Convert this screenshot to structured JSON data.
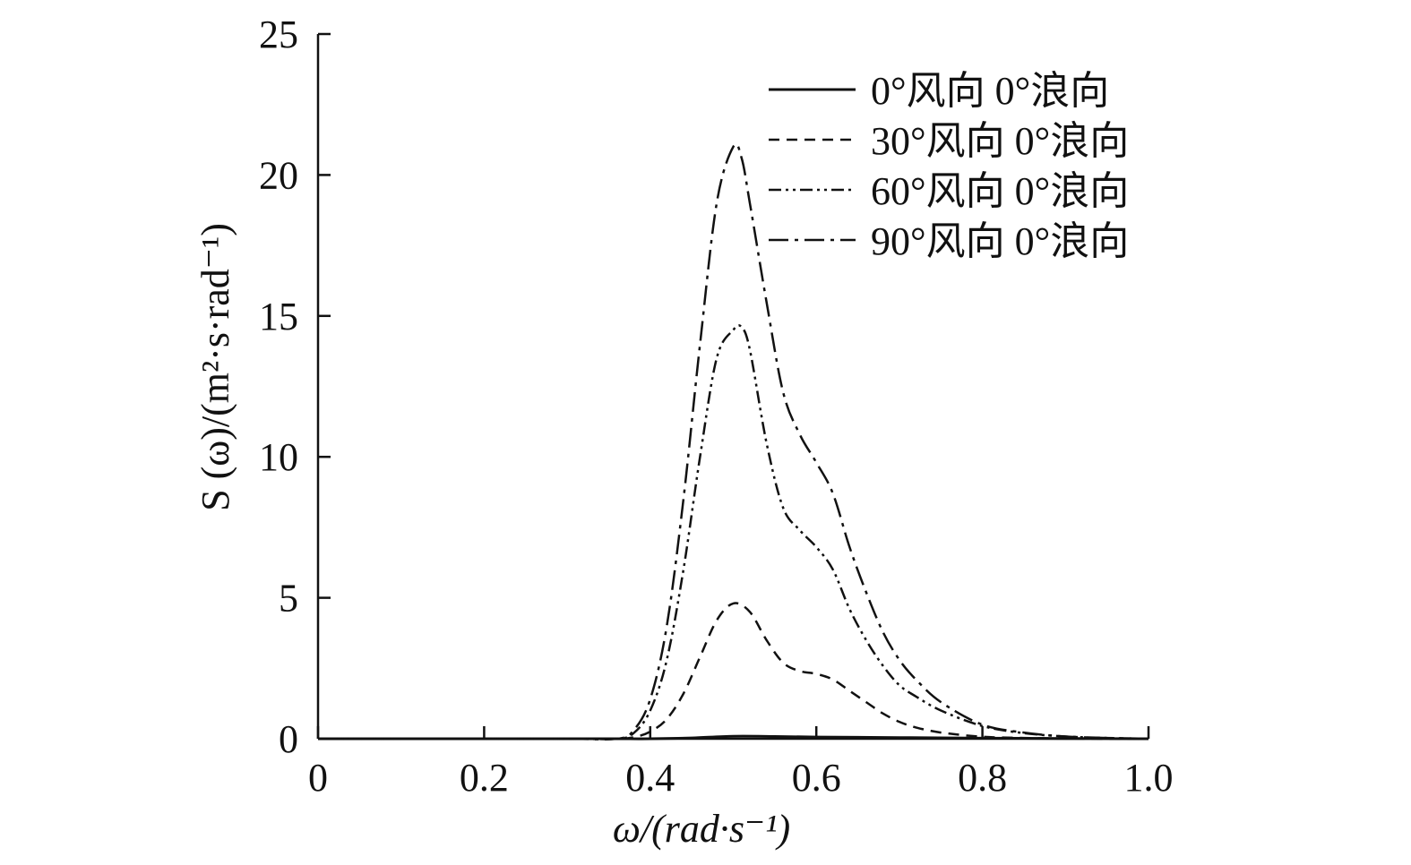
{
  "chart_data": {
    "type": "line",
    "title": "",
    "xlabel": "ω/(rad·s⁻¹)",
    "ylabel": "S (ω)/(m²·s·rad⁻¹)",
    "xlim": [
      0,
      1.0
    ],
    "ylim": [
      0,
      25
    ],
    "x_ticks": [
      "0",
      "0.2",
      "0.4",
      "0.6",
      "0.8",
      "1.0"
    ],
    "y_ticks": [
      "0",
      "5",
      "10",
      "15",
      "20",
      "25"
    ],
    "grid": false,
    "legend_position": "top-right",
    "series": [
      {
        "name": "0°风向 0°浪向",
        "style": "solid",
        "color": "#111111",
        "x": [
          0,
          0.1,
          0.2,
          0.3,
          0.36,
          0.4,
          0.45,
          0.5,
          0.55,
          0.6,
          0.65,
          0.7,
          0.8,
          0.9,
          1.0
        ],
        "y": [
          0,
          0,
          0,
          0,
          0,
          0,
          0.03,
          0.09,
          0.08,
          0.06,
          0.05,
          0.04,
          0.02,
          0.01,
          0
        ]
      },
      {
        "name": "30°风向 0°浪向",
        "style": "dashed",
        "color": "#111111",
        "x": [
          0,
          0.1,
          0.2,
          0.3,
          0.36,
          0.38,
          0.4,
          0.42,
          0.44,
          0.46,
          0.48,
          0.5,
          0.52,
          0.54,
          0.56,
          0.58,
          0.6,
          0.62,
          0.64,
          0.66,
          0.68,
          0.7,
          0.72,
          0.75,
          0.8,
          0.85,
          0.9,
          0.95,
          1.0
        ],
        "y": [
          0,
          0,
          0,
          0,
          0,
          0.05,
          0.25,
          0.7,
          1.6,
          2.9,
          4.2,
          4.8,
          4.5,
          3.5,
          2.7,
          2.4,
          2.3,
          2.1,
          1.7,
          1.3,
          0.9,
          0.6,
          0.4,
          0.22,
          0.07,
          0.03,
          0.01,
          0,
          0
        ]
      },
      {
        "name": "60°风向 0°浪向",
        "style": "dash-dot-dot",
        "color": "#111111",
        "x": [
          0,
          0.1,
          0.2,
          0.3,
          0.36,
          0.38,
          0.4,
          0.42,
          0.44,
          0.46,
          0.48,
          0.5,
          0.51,
          0.52,
          0.54,
          0.56,
          0.58,
          0.6,
          0.62,
          0.64,
          0.66,
          0.68,
          0.7,
          0.72,
          0.75,
          0.8,
          0.85,
          0.9,
          0.95,
          1.0
        ],
        "y": [
          0,
          0,
          0,
          0,
          0,
          0.2,
          1.0,
          2.8,
          6.0,
          10.0,
          13.5,
          14.5,
          14.6,
          13.8,
          10.5,
          8.2,
          7.4,
          6.8,
          6.0,
          4.6,
          3.5,
          2.6,
          1.9,
          1.5,
          1.0,
          0.45,
          0.2,
          0.08,
          0.03,
          0
        ]
      },
      {
        "name": "90°风向 0°浪向",
        "style": "dash-dot",
        "color": "#111111",
        "x": [
          0,
          0.1,
          0.2,
          0.3,
          0.36,
          0.38,
          0.4,
          0.42,
          0.44,
          0.46,
          0.48,
          0.5,
          0.51,
          0.52,
          0.54,
          0.56,
          0.58,
          0.6,
          0.62,
          0.64,
          0.66,
          0.68,
          0.7,
          0.72,
          0.75,
          0.8,
          0.85,
          0.9,
          0.95,
          1.0
        ],
        "y": [
          0,
          0,
          0,
          0,
          0,
          0.3,
          1.4,
          4.0,
          8.5,
          14.0,
          19.0,
          21.0,
          20.6,
          19.0,
          15.5,
          12.3,
          10.8,
          9.8,
          8.7,
          6.8,
          5.2,
          3.8,
          2.8,
          2.1,
          1.3,
          0.5,
          0.22,
          0.08,
          0.03,
          0
        ]
      }
    ]
  }
}
